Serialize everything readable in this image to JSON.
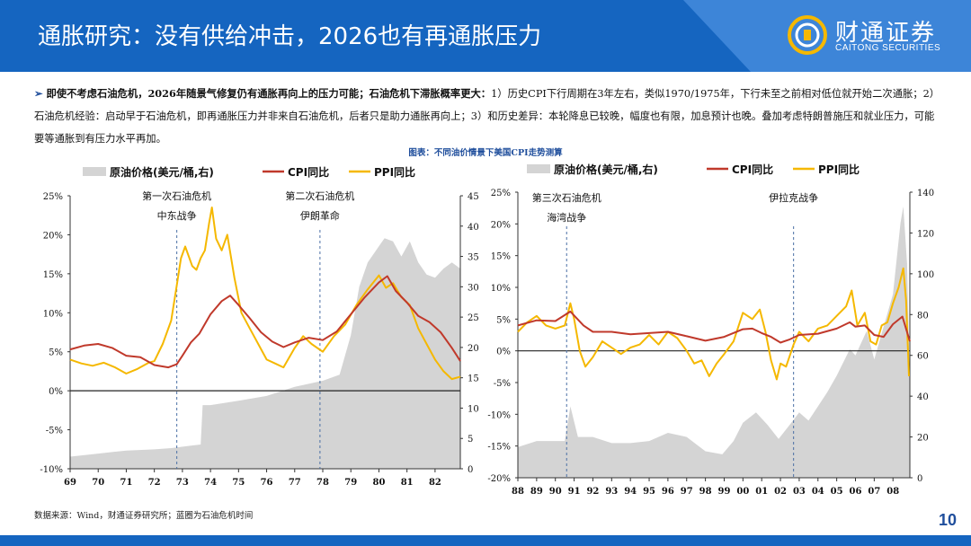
{
  "header": {
    "title": "通胀研究：没有供给冲击，2026也有再通胀压力",
    "logo_cn": "财通证券",
    "logo_en": "CAITONG SECURITIES",
    "colors": {
      "band": "#1565c0",
      "band_light": "#3d85d8"
    }
  },
  "summary": {
    "bullet": "➢",
    "bold_text": "即使不考虑石油危机，2026年随景气修复仍有通胀再向上的压力可能；石油危机下滞胀概率更大：",
    "body_text": "1）历史CPI下行周期在3年左右，类似1970/1975年，下行未至之前相对低位就开始二次通胀；2）石油危机经验：启动早于石油危机，即再通胀压力并非来自石油危机，后者只是助力通胀再向上；3）和历史差异：本轮降息已较晚，幅度也有限，加息预计也晚。叠加考虑特朗普施压和就业压力，可能要等通胀到有压力水平再加。"
  },
  "figure_title": "图表：不同油价情景下美国CPI走势测算",
  "legend": {
    "oil": "原油价格(美元/桶,右)",
    "cpi": "CPI同比",
    "ppi": "PPI同比"
  },
  "source": "数据来源：Wind，财通证券研究所；蓝圈为石油危机时间",
  "page_number": "10",
  "chart_data": [
    {
      "type": "line",
      "series_colors": {
        "oil": "#d4d4d4",
        "cpi": "#c0392b",
        "ppi": "#f5b800"
      },
      "x_tick_labels": [
        "69",
        "70",
        "71",
        "72",
        "73",
        "74",
        "75",
        "76",
        "77",
        "78",
        "79",
        "80",
        "81",
        "82"
      ],
      "x_range": [
        1969.0,
        1982.9
      ],
      "y_left_ticks": [
        "25%",
        "20%",
        "15%",
        "10%",
        "5%",
        "0%",
        "-5%",
        "-10%"
      ],
      "y_left_range": [
        -10,
        25
      ],
      "y_right_ticks": [
        "45",
        "40",
        "35",
        "30",
        "25",
        "20",
        "15",
        "10",
        "5",
        "0"
      ],
      "y_right_range": [
        0,
        45
      ],
      "annotations": [
        {
          "x": 1972.8,
          "lines": [
            "第一次石油危机",
            "中东战争"
          ]
        },
        {
          "x": 1977.9,
          "lines": [
            "第二次石油危机",
            "伊朗革命"
          ]
        }
      ],
      "series": [
        {
          "name": "CPI同比",
          "key": "cpi",
          "axis": "left",
          "x": [
            1969.0,
            1969.5,
            1970.0,
            1970.5,
            1971.0,
            1971.5,
            1972.0,
            1972.5,
            1972.8,
            1973.0,
            1973.3,
            1973.6,
            1974.0,
            1974.4,
            1974.7,
            1975.0,
            1975.4,
            1975.8,
            1976.2,
            1976.6,
            1977.0,
            1977.5,
            1978.0,
            1978.5,
            1979.0,
            1979.5,
            1980.0,
            1980.3,
            1980.6,
            1981.0,
            1981.4,
            1981.8,
            1982.2,
            1982.6,
            1982.9
          ],
          "values": [
            5.3,
            5.8,
            6.0,
            5.5,
            4.5,
            4.3,
            3.3,
            3.0,
            3.4,
            4.5,
            6.2,
            7.3,
            9.8,
            11.5,
            12.2,
            11.0,
            9.3,
            7.5,
            6.3,
            5.6,
            6.2,
            6.8,
            6.5,
            7.6,
            9.8,
            12.0,
            13.9,
            14.7,
            12.8,
            11.3,
            9.6,
            8.8,
            7.5,
            5.5,
            3.8
          ]
        },
        {
          "name": "PPI同比",
          "key": "ppi",
          "axis": "left",
          "x": [
            1969.0,
            1969.4,
            1969.8,
            1970.2,
            1970.6,
            1971.0,
            1971.4,
            1971.8,
            1972.0,
            1972.3,
            1972.6,
            1972.8,
            1972.95,
            1973.1,
            1973.35,
            1973.5,
            1973.65,
            1973.8,
            1973.95,
            1974.05,
            1974.2,
            1974.4,
            1974.6,
            1974.85,
            1975.1,
            1975.4,
            1975.7,
            1976.0,
            1976.3,
            1976.6,
            1977.0,
            1977.3,
            1977.6,
            1978.0,
            1978.4,
            1978.8,
            1979.2,
            1979.6,
            1980.0,
            1980.25,
            1980.5,
            1980.8,
            1981.1,
            1981.4,
            1981.7,
            1982.0,
            1982.3,
            1982.6,
            1982.9
          ],
          "values": [
            4.0,
            3.5,
            3.2,
            3.6,
            3.0,
            2.2,
            2.8,
            3.6,
            3.8,
            6.0,
            9.0,
            13.5,
            17.0,
            18.5,
            16.0,
            15.5,
            17.0,
            18.0,
            21.5,
            23.5,
            19.5,
            18.0,
            20.0,
            14.5,
            10.0,
            8.0,
            6.0,
            4.0,
            3.5,
            3.0,
            5.5,
            7.0,
            6.0,
            5.0,
            7.0,
            8.5,
            11.0,
            13.0,
            14.8,
            13.2,
            13.8,
            12.0,
            11.0,
            8.0,
            6.0,
            4.0,
            2.5,
            1.5,
            1.8
          ]
        },
        {
          "name": "原油价格(美元/桶,右)",
          "key": "oil",
          "axis": "right",
          "x": [
            1969.0,
            1970.0,
            1971.0,
            1972.0,
            1972.6,
            1973.3,
            1973.65,
            1973.72,
            1974.0,
            1975.0,
            1976.0,
            1977.0,
            1978.0,
            1978.6,
            1979.0,
            1979.3,
            1979.6,
            1979.9,
            1980.2,
            1980.5,
            1980.8,
            1981.1,
            1981.4,
            1981.7,
            1982.0,
            1982.3,
            1982.6,
            1982.9
          ],
          "values": [
            2.0,
            2.5,
            3.0,
            3.2,
            3.4,
            3.8,
            4.0,
            10.5,
            10.5,
            11.2,
            12.0,
            13.5,
            14.5,
            15.5,
            22.0,
            30.0,
            34.0,
            36.0,
            38.0,
            37.5,
            35.0,
            37.5,
            34.0,
            32.0,
            31.5,
            33.0,
            34.0,
            33.0
          ]
        }
      ]
    },
    {
      "type": "line",
      "series_colors": {
        "oil": "#d4d4d4",
        "cpi": "#c0392b",
        "ppi": "#f5b800"
      },
      "x_tick_labels": [
        "88",
        "89",
        "90",
        "91",
        "92",
        "93",
        "94",
        "95",
        "96",
        "97",
        "98",
        "99",
        "00",
        "01",
        "02",
        "03",
        "04",
        "05",
        "06",
        "07",
        "08"
      ],
      "x_range": [
        1988.0,
        2008.9
      ],
      "y_left_ticks": [
        "25%",
        "20%",
        "15%",
        "10%",
        "5%",
        "0%",
        "-5%",
        "-10%",
        "-15%",
        "-20%"
      ],
      "y_left_range": [
        -20,
        25
      ],
      "y_right_ticks": [
        "140",
        "120",
        "100",
        "80",
        "60",
        "40",
        "20",
        "0"
      ],
      "y_right_range": [
        0,
        140
      ],
      "annotations": [
        {
          "x": 1990.6,
          "lines": [
            "第三次石油危机",
            "海湾战争"
          ]
        },
        {
          "x": 2002.7,
          "lines": [
            "伊拉克战争"
          ]
        }
      ],
      "series": [
        {
          "name": "CPI同比",
          "key": "cpi",
          "axis": "left",
          "x": [
            1988.0,
            1989.0,
            1990.0,
            1990.8,
            1991.5,
            1992.0,
            1993.0,
            1994.0,
            1995.0,
            1996.0,
            1997.0,
            1998.0,
            1999.0,
            2000.0,
            2000.5,
            2001.0,
            2001.5,
            2002.0,
            2002.5,
            2003.0,
            2004.0,
            2005.0,
            2005.7,
            2006.0,
            2006.5,
            2007.0,
            2007.5,
            2008.0,
            2008.5,
            2008.9
          ],
          "values": [
            4.0,
            4.8,
            4.7,
            6.2,
            4.0,
            3.0,
            3.0,
            2.6,
            2.8,
            3.0,
            2.3,
            1.6,
            2.2,
            3.4,
            3.5,
            2.8,
            2.2,
            1.3,
            1.8,
            2.5,
            2.7,
            3.5,
            4.5,
            3.8,
            4.0,
            2.5,
            2.2,
            4.2,
            5.4,
            1.5
          ]
        },
        {
          "name": "PPI同比",
          "key": "ppi",
          "axis": "left",
          "x": [
            1988.0,
            1988.5,
            1989.0,
            1989.5,
            1990.0,
            1990.5,
            1990.8,
            1991.0,
            1991.3,
            1991.6,
            1992.0,
            1992.5,
            1993.0,
            1993.5,
            1994.0,
            1994.5,
            1995.0,
            1995.5,
            1996.0,
            1996.5,
            1997.0,
            1997.4,
            1997.8,
            1998.2,
            1998.6,
            1999.0,
            1999.5,
            2000.0,
            2000.5,
            2000.9,
            2001.2,
            2001.5,
            2001.8,
            2002.0,
            2002.3,
            2002.7,
            2003.0,
            2003.5,
            2004.0,
            2004.5,
            2005.0,
            2005.5,
            2005.8,
            2006.1,
            2006.5,
            2006.8,
            2007.1,
            2007.4,
            2007.7,
            2008.0,
            2008.3,
            2008.55,
            2008.7,
            2008.85
          ],
          "values": [
            3.0,
            4.5,
            5.5,
            4.0,
            3.5,
            4.0,
            7.5,
            5.0,
            0.0,
            -2.5,
            -1.0,
            1.5,
            0.5,
            -0.5,
            0.5,
            1.0,
            2.5,
            1.0,
            3.0,
            2.0,
            0.0,
            -2.0,
            -1.5,
            -4.0,
            -2.0,
            -0.5,
            1.5,
            6.0,
            5.0,
            6.5,
            3.0,
            -1.5,
            -4.5,
            -2.0,
            -2.5,
            1.0,
            3.0,
            1.5,
            3.5,
            4.0,
            5.5,
            7.0,
            9.5,
            4.0,
            6.0,
            1.5,
            1.0,
            4.0,
            4.5,
            7.5,
            10.0,
            13.0,
            8.0,
            -4.0
          ]
        },
        {
          "name": "原油价格(美元/桶,右)",
          "key": "oil",
          "axis": "right",
          "x": [
            1988.0,
            1989.0,
            1990.0,
            1990.5,
            1990.8,
            1991.2,
            1992.0,
            1993.0,
            1994.0,
            1995.0,
            1996.0,
            1997.0,
            1998.0,
            1998.9,
            1999.5,
            2000.0,
            2000.7,
            2001.3,
            2001.9,
            2002.5,
            2003.0,
            2003.5,
            2004.0,
            2004.5,
            2005.0,
            2005.7,
            2006.0,
            2006.6,
            2007.0,
            2007.5,
            2008.0,
            2008.4,
            2008.55,
            2008.75,
            2008.9
          ],
          "values": [
            15.0,
            18.0,
            18.0,
            18.0,
            35.0,
            20.0,
            20.0,
            17.0,
            17.0,
            18.0,
            22.0,
            20.0,
            13.0,
            11.5,
            18.0,
            27.0,
            32.0,
            26.0,
            19.0,
            26.0,
            32.0,
            28.0,
            35.0,
            42.0,
            50.0,
            63.0,
            60.0,
            72.0,
            58.0,
            74.0,
            90.0,
            125.0,
            133.0,
            105.0,
            45.0
          ]
        }
      ]
    }
  ]
}
